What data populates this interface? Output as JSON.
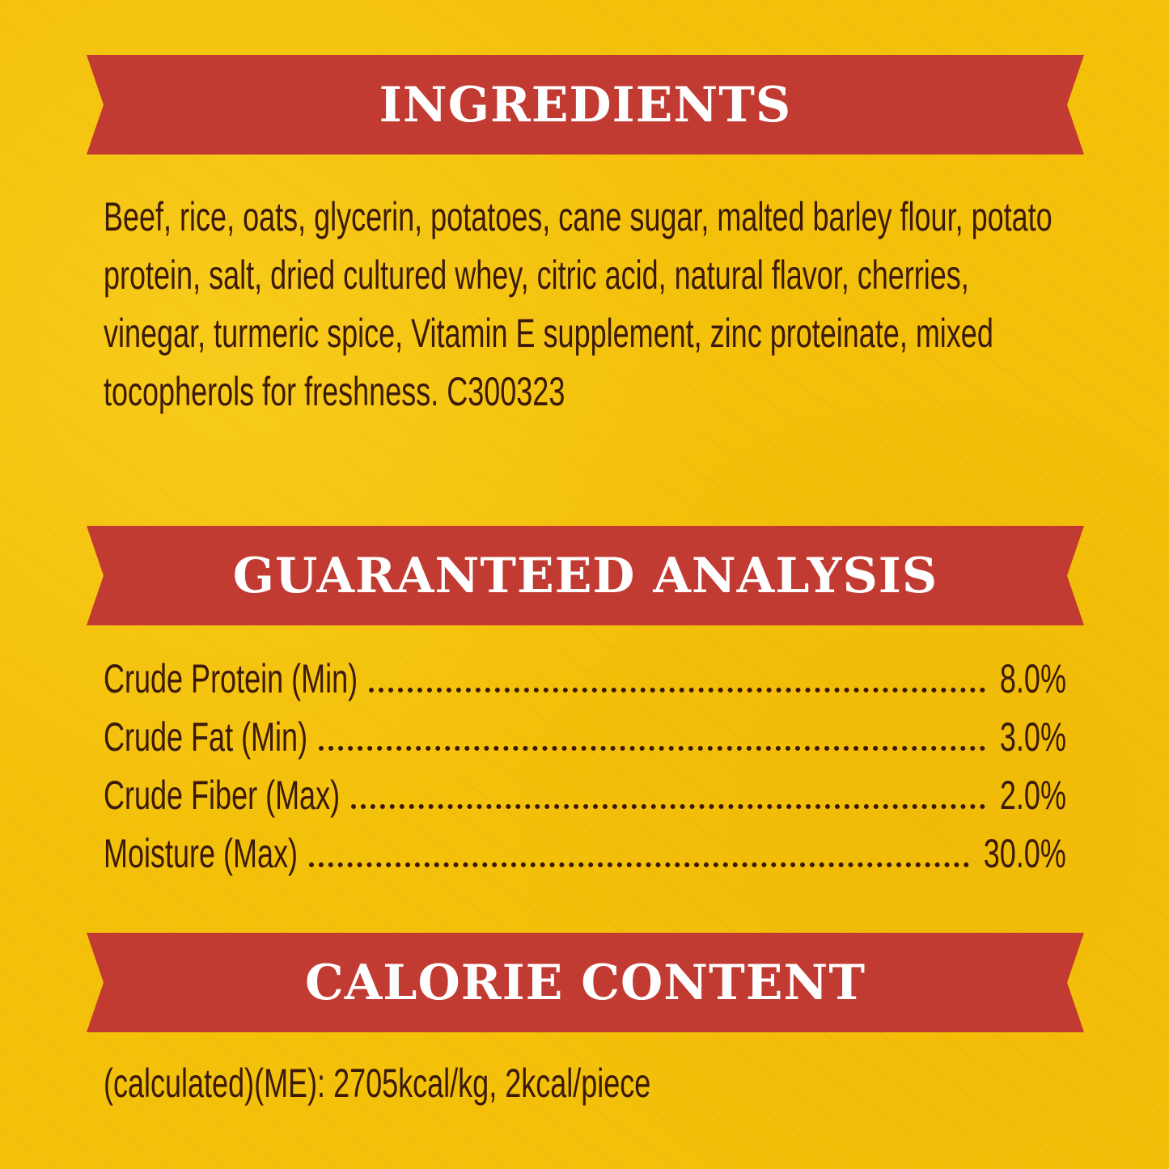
{
  "colors": {
    "background": "#f4c10a",
    "banner": "#c23b32",
    "text": "#3b1a08",
    "heading": "#ffffff"
  },
  "ingredients": {
    "heading": "INGREDIENTS",
    "text": "Beef, rice, oats, glycerin, potatoes, cane sugar, malted barley flour, potato protein, salt, dried cultured whey, citric acid, natural flavor, cherries, vinegar, turmeric spice, Vitamin E supplement, zinc proteinate, mixed tocopherols for freshness. C300323"
  },
  "analysis": {
    "heading": "GUARANTEED ANALYSIS",
    "rows": [
      {
        "label": "Crude Protein (Min)",
        "value": "8.0%"
      },
      {
        "label": "Crude Fat (Min)",
        "value": "3.0%"
      },
      {
        "label": "Crude Fiber (Max)",
        "value": "2.0%"
      },
      {
        "label": "Moisture (Max)",
        "value": "30.0%"
      }
    ]
  },
  "calories": {
    "heading": "CALORIE CONTENT",
    "text": "(calculated)(ME): 2705kcal/kg, 2kcal/piece"
  }
}
